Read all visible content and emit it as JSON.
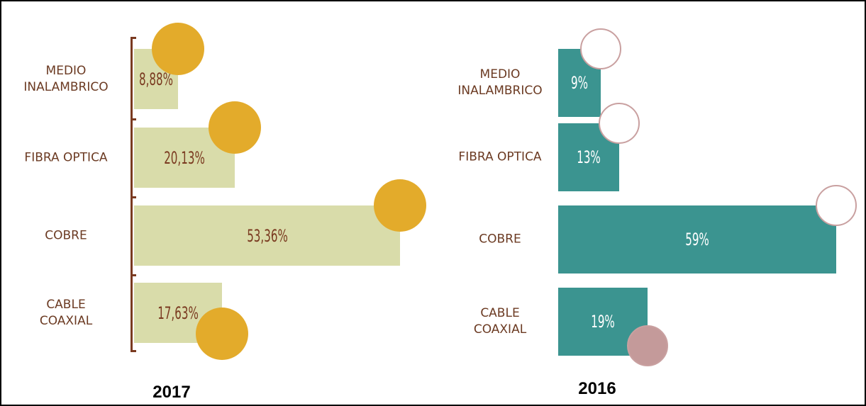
{
  "chart_data": [
    {
      "type": "bar",
      "title": "2017",
      "categories": [
        "MEDIO\nINALAMBRICO",
        "FIBRA OPTICA",
        "COBRE",
        "CABLE\nCOAXIAL"
      ],
      "values": [
        8.88,
        20.13,
        53.36,
        17.63
      ],
      "value_labels": [
        "8,88%",
        "20,13%",
        "53,36%",
        "17,63%"
      ],
      "color": "#d9dcaa"
    },
    {
      "type": "bar",
      "title": "2016",
      "categories": [
        "MEDIO\nINALAMBRICO",
        "FIBRA OPTICA",
        "COBRE",
        "CABLE\nCOAXIAL"
      ],
      "values": [
        9,
        13,
        59,
        19
      ],
      "value_labels": [
        "9%",
        "13%",
        "59%",
        "19%"
      ],
      "color": "#3b9490"
    }
  ]
}
